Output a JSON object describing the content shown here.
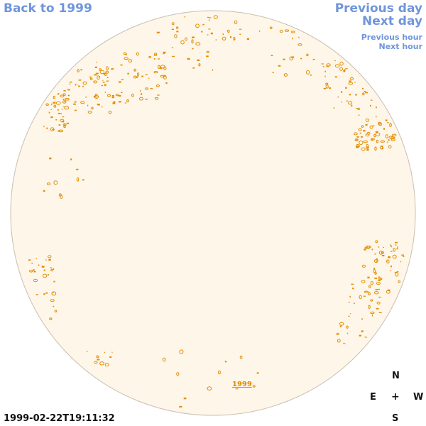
{
  "nav": {
    "back": "Back to 1999",
    "previous_day": "Previous day",
    "next_day": "Next day",
    "previous_hour": "Previous hour",
    "next_hour": "Next hour"
  },
  "sun": {
    "disk_fill": "#fdf6e9",
    "disk_stroke": "#c9bfb0",
    "feature_color": "#e48c00"
  },
  "year_label": "1999",
  "compass": {
    "north": "N",
    "south": "S",
    "east": "E",
    "west": "W",
    "center": "+"
  },
  "timestamp": "1999-02-22T19:11:32"
}
